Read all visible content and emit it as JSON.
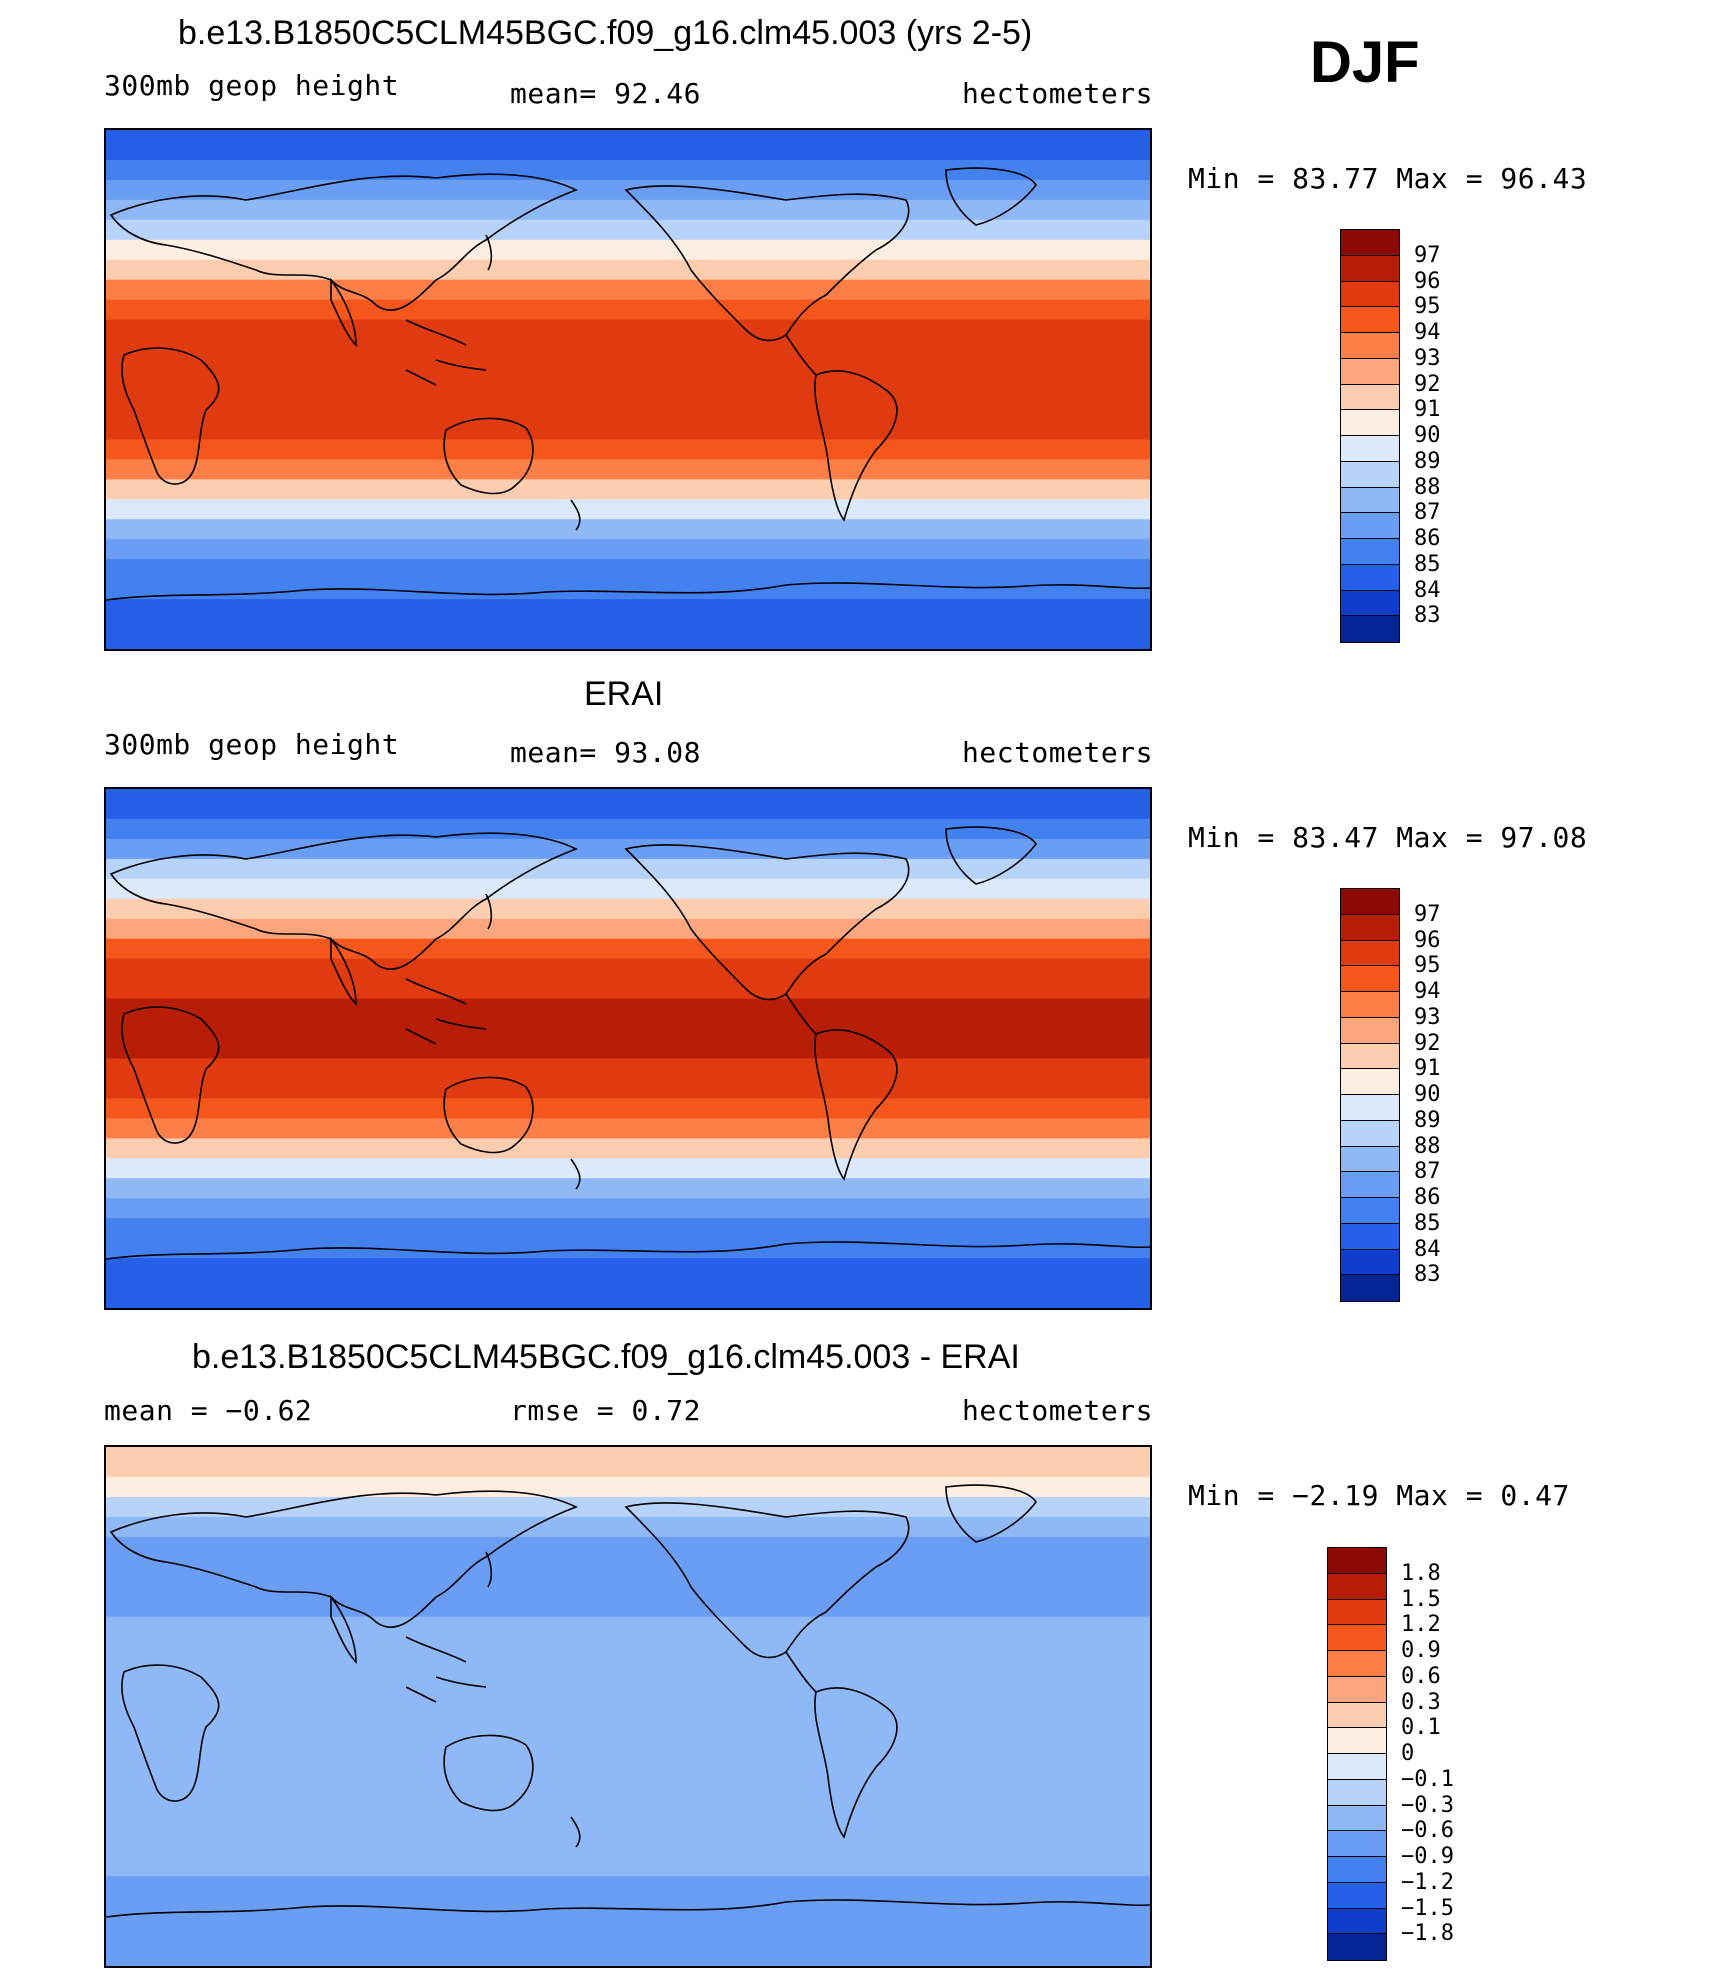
{
  "season": "DJF",
  "panels": [
    {
      "title": "b.e13.B1850C5CLM45BGC.f09_g16.clm45.003 (yrs 2-5)",
      "left_label": "300mb geop height",
      "center_label": "mean=  92.46",
      "units": "hectometers",
      "minmax": "Min =   83.77 Max =   96.43",
      "colorbar": {
        "labels": [
          "97",
          "96",
          "95",
          "94",
          "93",
          "92",
          "91",
          "90",
          "89",
          "88",
          "87",
          "86",
          "85",
          "84",
          "83"
        ],
        "colors": [
          "#8c0a06",
          "#b81e06",
          "#e03a10",
          "#f5561c",
          "#fb7f47",
          "#fda67d",
          "#fdcdb0",
          "#fdeee1",
          "#dbe9fb",
          "#b7d3f9",
          "#8fb8f7",
          "#6a9ef4",
          "#4381f0",
          "#2560e8",
          "#0f3ecc",
          "#062595"
        ]
      },
      "chart_data": {
        "type": "heatmap",
        "title": "b.e13.B1850C5CLM45BGC.f09_g16.clm45.003 (yrs 2-5)",
        "variable": "300mb geop height",
        "units": "hectometers",
        "mean": 92.46,
        "min": 83.77,
        "max": 96.43,
        "levels": [
          83,
          84,
          85,
          86,
          87,
          88,
          89,
          90,
          91,
          92,
          93,
          94,
          95,
          96,
          97
        ],
        "latitude_band_values": [
          84.5,
          86.0,
          88.5,
          91.5,
          94.5,
          95.5,
          95.5,
          95.0,
          93.0,
          89.5,
          86.0,
          85.0,
          84.5
        ]
      }
    },
    {
      "title": "ERAI",
      "left_label": "300mb geop height",
      "center_label": "mean=  93.08",
      "units": "hectometers",
      "minmax": "Min =   83.47 Max =   97.08",
      "colorbar": {
        "labels": [
          "97",
          "96",
          "95",
          "94",
          "93",
          "92",
          "91",
          "90",
          "89",
          "88",
          "87",
          "86",
          "85",
          "84",
          "83"
        ],
        "colors": [
          "#8c0a06",
          "#b81e06",
          "#e03a10",
          "#f5561c",
          "#fb7f47",
          "#fda67d",
          "#fdcdb0",
          "#fdeee1",
          "#dbe9fb",
          "#b7d3f9",
          "#8fb8f7",
          "#6a9ef4",
          "#4381f0",
          "#2560e8",
          "#0f3ecc",
          "#062595"
        ]
      },
      "chart_data": {
        "type": "heatmap",
        "title": "ERAI",
        "variable": "300mb geop height",
        "units": "hectometers",
        "mean": 93.08,
        "min": 83.47,
        "max": 97.08,
        "levels": [
          83,
          84,
          85,
          86,
          87,
          88,
          89,
          90,
          91,
          92,
          93,
          94,
          95,
          96,
          97
        ],
        "latitude_band_values": [
          84.5,
          86.5,
          89.5,
          92.5,
          95.5,
          96.0,
          96.0,
          95.5,
          93.0,
          89.0,
          86.0,
          85.0,
          84.0
        ]
      }
    },
    {
      "title": "b.e13.B1850C5CLM45BGC.f09_g16.clm45.003 - ERAI",
      "left_label": "mean =   −0.62",
      "center_label": "rmse =    0.72",
      "units": "hectometers",
      "minmax": "Min =   −2.19 Max =    0.47",
      "colorbar": {
        "labels": [
          "1.8",
          "1.5",
          "1.2",
          "0.9",
          "0.6",
          "0.3",
          "0.1",
          "0",
          "−0.1",
          "−0.3",
          "−0.6",
          "−0.9",
          "−1.2",
          "−1.5",
          "−1.8"
        ],
        "colors": [
          "#8c0a06",
          "#b81e06",
          "#e03a10",
          "#f5561c",
          "#fb7f47",
          "#fda67d",
          "#fdcdb0",
          "#fdeee1",
          "#dbe9fb",
          "#b7d3f9",
          "#8fb8f7",
          "#6a9ef4",
          "#4381f0",
          "#2560e8",
          "#0f3ecc",
          "#062595"
        ]
      },
      "chart_data": {
        "type": "heatmap",
        "title": "b.e13.B1850C5CLM45BGC.f09_g16.clm45.003 - ERAI",
        "variable": "300mb geop height difference",
        "units": "hectometers",
        "mean": -0.62,
        "rmse": 0.72,
        "min": -2.19,
        "max": 0.47,
        "levels": [
          -1.8,
          -1.5,
          -1.2,
          -0.9,
          -0.6,
          -0.3,
          -0.1,
          0,
          0.1,
          0.3,
          0.6,
          0.9,
          1.2,
          1.5,
          1.8
        ],
        "latitude_band_values": [
          0.2,
          -0.2,
          -0.9,
          -0.7,
          -0.6,
          -0.6,
          -0.6,
          -0.6,
          -0.5,
          -0.5,
          -0.6,
          -0.7,
          -0.7
        ]
      }
    }
  ]
}
